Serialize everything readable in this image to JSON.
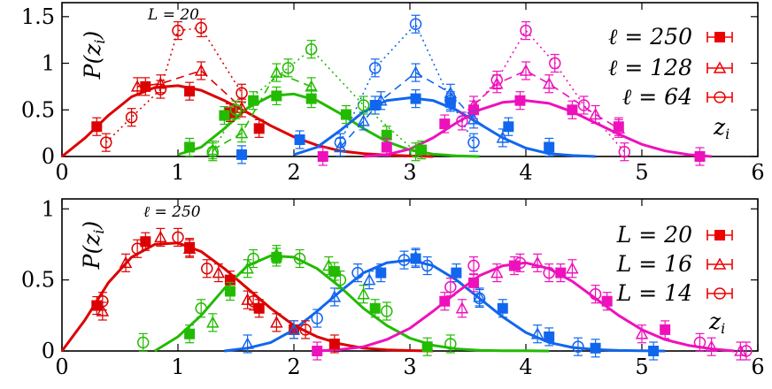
{
  "chart_data": [
    {
      "type": "line",
      "panel": "top",
      "annotation": "L = 20",
      "ylabel": "P(z_i)",
      "xlabel": "z_i",
      "xlim": [
        0,
        6
      ],
      "ylim": [
        0,
        1.65
      ],
      "xticks": [
        0,
        1,
        2,
        3,
        4,
        5,
        6
      ],
      "yticks": [
        0,
        0.5,
        1,
        1.5
      ],
      "ytick_labels": [
        "0",
        "0.5",
        "1",
        "1.5"
      ],
      "legend_position": "top-right",
      "legend": [
        {
          "label": "ℓ = 250",
          "marker": "square",
          "line": "solid"
        },
        {
          "label": "ℓ = 128",
          "marker": "triangle",
          "line": "dashed"
        },
        {
          "label": "ℓ = 64",
          "marker": "circle",
          "line": "dotted"
        }
      ],
      "colors": [
        "#dd0000",
        "#22bb00",
        "#1166ee",
        "#ee11bb"
      ],
      "curves": [
        {
          "x": [
            0.0,
            0.2,
            0.4,
            0.6,
            0.8,
            1.0,
            1.2,
            1.4,
            1.6,
            1.8,
            2.0,
            2.2,
            2.4,
            2.6,
            2.8,
            3.0,
            3.2
          ],
          "y": [
            0.0,
            0.2,
            0.44,
            0.64,
            0.74,
            0.76,
            0.71,
            0.6,
            0.47,
            0.33,
            0.21,
            0.12,
            0.06,
            0.03,
            0.015,
            0.006,
            0.0
          ]
        },
        {
          "x": [
            1.0,
            1.2,
            1.4,
            1.6,
            1.8,
            2.0,
            2.2,
            2.4,
            2.6,
            2.8,
            3.0,
            3.2,
            3.4,
            3.6
          ],
          "y": [
            0.02,
            0.1,
            0.3,
            0.52,
            0.65,
            0.67,
            0.6,
            0.46,
            0.3,
            0.16,
            0.07,
            0.025,
            0.008,
            0.0
          ]
        },
        {
          "x": [
            2.0,
            2.2,
            2.4,
            2.6,
            2.8,
            3.0,
            3.2,
            3.4,
            3.6,
            3.8,
            4.0,
            4.2,
            4.4,
            4.6
          ],
          "y": [
            0.02,
            0.1,
            0.28,
            0.48,
            0.6,
            0.63,
            0.6,
            0.5,
            0.35,
            0.2,
            0.09,
            0.03,
            0.01,
            0.0
          ]
        },
        {
          "x": [
            2.6,
            2.8,
            3.0,
            3.2,
            3.4,
            3.6,
            3.8,
            4.0,
            4.2,
            4.4,
            4.6,
            4.8,
            5.0,
            5.2,
            5.4,
            5.6
          ],
          "y": [
            0.0,
            0.02,
            0.08,
            0.2,
            0.36,
            0.5,
            0.58,
            0.6,
            0.57,
            0.48,
            0.36,
            0.24,
            0.13,
            0.06,
            0.02,
            0.0
          ]
        }
      ],
      "series": [
        {
          "name": "ℓ = 250 (z1)",
          "color": "#dd0000",
          "marker": "square",
          "line": "solid",
          "x": [
            0.3,
            0.72,
            1.1,
            1.45,
            1.7
          ],
          "y": [
            0.32,
            0.75,
            0.7,
            0.47,
            0.3
          ]
        },
        {
          "name": "ℓ = 250 (z2)",
          "color": "#22bb00",
          "marker": "square",
          "line": "solid",
          "x": [
            1.1,
            1.4,
            1.65,
            1.85,
            2.15,
            2.45,
            2.8,
            3.1
          ],
          "y": [
            0.1,
            0.44,
            0.6,
            0.65,
            0.62,
            0.45,
            0.23,
            0.07
          ]
        },
        {
          "name": "ℓ = 250 (z3)",
          "color": "#1166ee",
          "marker": "square",
          "line": "solid",
          "x": [
            1.55,
            2.05,
            2.7,
            3.05,
            3.35,
            3.85,
            4.2
          ],
          "y": [
            0.02,
            0.18,
            0.55,
            0.62,
            0.58,
            0.32,
            0.1
          ]
        },
        {
          "name": "ℓ = 250 (z4)",
          "color": "#ee11bb",
          "marker": "square",
          "line": "solid",
          "x": [
            2.25,
            2.8,
            3.3,
            3.55,
            3.95,
            4.4,
            4.8,
            5.5
          ],
          "y": [
            0.0,
            0.1,
            0.35,
            0.5,
            0.6,
            0.5,
            0.32,
            0.0
          ]
        },
        {
          "name": "ℓ = 128 (z1)",
          "color": "#dd0000",
          "marker": "triangle",
          "line": "dashed",
          "x": [
            0.65,
            0.85,
            1.2,
            1.55
          ],
          "y": [
            0.75,
            0.78,
            0.92,
            0.52
          ]
        },
        {
          "name": "ℓ = 128 (z2)",
          "color": "#22bb00",
          "marker": "triangle",
          "line": "dashed",
          "x": [
            1.3,
            1.55,
            1.85,
            2.15
          ],
          "y": [
            0.07,
            0.25,
            0.9,
            0.75
          ]
        },
        {
          "name": "ℓ = 128 (z3)",
          "color": "#1166ee",
          "marker": "triangle",
          "line": "dashed",
          "x": [
            2.4,
            2.6,
            2.75,
            3.05,
            3.35,
            3.55,
            3.8
          ],
          "y": [
            0.1,
            0.38,
            0.6,
            0.9,
            0.68,
            0.4,
            0.2
          ]
        },
        {
          "name": "ℓ = 128 (z4)",
          "color": "#ee11bb",
          "marker": "triangle",
          "line": "dashed",
          "x": [
            3.55,
            3.75,
            4.0,
            4.2,
            4.6,
            4.8
          ],
          "y": [
            0.55,
            0.78,
            0.92,
            0.78,
            0.45,
            0.3
          ]
        },
        {
          "name": "ℓ = 64 (z1)",
          "color": "#dd0000",
          "marker": "circle",
          "line": "dotted",
          "x": [
            0.38,
            0.6,
            0.85,
            1.0,
            1.2,
            1.55
          ],
          "y": [
            0.15,
            0.42,
            0.72,
            1.35,
            1.38,
            0.68
          ]
        },
        {
          "name": "ℓ = 64 (z2)",
          "color": "#22bb00",
          "marker": "circle",
          "line": "dotted",
          "x": [
            1.3,
            1.5,
            1.95,
            2.15,
            2.6,
            3.05
          ],
          "y": [
            0.05,
            0.5,
            0.95,
            1.15,
            0.55,
            0.05
          ]
        },
        {
          "name": "ℓ = 64 (z3)",
          "color": "#1166ee",
          "marker": "circle",
          "line": "dotted",
          "x": [
            2.4,
            2.7,
            3.05,
            3.35,
            3.55
          ],
          "y": [
            0.15,
            0.95,
            1.42,
            0.6,
            0.15
          ]
        },
        {
          "name": "ℓ = 64 (z4)",
          "color": "#ee11bb",
          "marker": "circle",
          "line": "dotted",
          "x": [
            3.45,
            3.75,
            4.0,
            4.25,
            4.5,
            4.85
          ],
          "y": [
            0.38,
            0.82,
            1.35,
            1.0,
            0.55,
            0.05
          ]
        }
      ]
    },
    {
      "type": "line",
      "panel": "bottom",
      "annotation": "ℓ = 250",
      "ylabel": "P(z_i)",
      "xlabel": "z_i",
      "xlim": [
        0,
        6
      ],
      "ylim": [
        0,
        1.07
      ],
      "xticks": [
        0,
        1,
        2,
        3,
        4,
        5,
        6
      ],
      "yticks": [
        0,
        0.5,
        1
      ],
      "ytick_labels": [
        "0",
        "0.5",
        "1"
      ],
      "legend_position": "top-right",
      "legend": [
        {
          "label": "L = 20",
          "marker": "square"
        },
        {
          "label": "L = 16",
          "marker": "triangle"
        },
        {
          "label": "L = 14",
          "marker": "circle"
        }
      ],
      "colors": [
        "#dd0000",
        "#22bb00",
        "#1166ee",
        "#ee11bb"
      ],
      "curves": [
        {
          "x": [
            0.0,
            0.2,
            0.4,
            0.6,
            0.8,
            1.0,
            1.2,
            1.4,
            1.6,
            1.8,
            2.0,
            2.2,
            2.4,
            2.6,
            2.8,
            3.0,
            3.2
          ],
          "y": [
            0.0,
            0.22,
            0.48,
            0.66,
            0.75,
            0.76,
            0.7,
            0.58,
            0.44,
            0.3,
            0.18,
            0.1,
            0.05,
            0.02,
            0.008,
            0.003,
            0.0
          ]
        },
        {
          "x": [
            0.8,
            1.0,
            1.2,
            1.4,
            1.6,
            1.8,
            2.0,
            2.2,
            2.4,
            2.6,
            2.8,
            3.0,
            3.2,
            3.4,
            3.6,
            3.8,
            4.0,
            4.2
          ],
          "y": [
            0.0,
            0.1,
            0.25,
            0.44,
            0.6,
            0.67,
            0.66,
            0.58,
            0.45,
            0.3,
            0.18,
            0.09,
            0.04,
            0.015,
            0.005,
            0.002,
            0.001,
            0.0
          ]
        },
        {
          "x": [
            1.4,
            1.6,
            1.8,
            2.0,
            2.2,
            2.4,
            2.6,
            2.8,
            3.0,
            3.2,
            3.4,
            3.6,
            3.8,
            4.0,
            4.2,
            4.4,
            4.6,
            4.8,
            5.0,
            5.2
          ],
          "y": [
            0.0,
            0.02,
            0.06,
            0.15,
            0.28,
            0.42,
            0.55,
            0.62,
            0.64,
            0.6,
            0.5,
            0.37,
            0.24,
            0.13,
            0.06,
            0.025,
            0.01,
            0.004,
            0.001,
            0.0
          ]
        },
        {
          "x": [
            2.2,
            2.4,
            2.6,
            2.8,
            3.0,
            3.2,
            3.4,
            3.6,
            3.8,
            4.0,
            4.2,
            4.4,
            4.6,
            4.8,
            5.0,
            5.2,
            5.4,
            5.6,
            5.8
          ],
          "y": [
            0.0,
            0.01,
            0.03,
            0.08,
            0.16,
            0.28,
            0.41,
            0.53,
            0.6,
            0.62,
            0.58,
            0.49,
            0.37,
            0.25,
            0.15,
            0.08,
            0.04,
            0.015,
            0.0
          ]
        }
      ],
      "series": [
        {
          "name": "L = 20 (z1)",
          "color": "#dd0000",
          "marker": "square",
          "x": [
            0.3,
            0.72,
            1.1,
            1.45,
            1.7,
            2.0,
            2.35
          ],
          "y": [
            0.32,
            0.77,
            0.73,
            0.5,
            0.3,
            0.15,
            0.05
          ]
        },
        {
          "name": "L = 20 (z2)",
          "color": "#22bb00",
          "marker": "square",
          "x": [
            1.1,
            1.45,
            1.85,
            2.35,
            2.7,
            3.15
          ],
          "y": [
            0.12,
            0.42,
            0.66,
            0.56,
            0.3,
            0.03
          ]
        },
        {
          "name": "L = 20 (z3)",
          "color": "#1166ee",
          "marker": "square",
          "x": [
            2.75,
            3.05,
            3.4,
            3.8,
            4.2,
            4.6,
            5.1
          ],
          "y": [
            0.55,
            0.65,
            0.55,
            0.3,
            0.1,
            0.02,
            0.0
          ]
        },
        {
          "name": "L = 20 (z4)",
          "color": "#ee11bb",
          "marker": "square",
          "x": [
            2.2,
            3.3,
            3.55,
            3.9,
            4.3,
            4.7,
            5.2
          ],
          "y": [
            0.0,
            0.35,
            0.48,
            0.6,
            0.55,
            0.35,
            0.15
          ]
        },
        {
          "name": "L = 16 (z1)",
          "color": "#dd0000",
          "marker": "triangle",
          "x": [
            0.35,
            0.55,
            0.85,
            1.1,
            1.35,
            1.6,
            1.85
          ],
          "y": [
            0.28,
            0.62,
            0.8,
            0.72,
            0.55,
            0.36,
            0.2
          ]
        },
        {
          "name": "L = 16 (z2)",
          "color": "#22bb00",
          "marker": "triangle",
          "x": [
            1.3,
            1.6,
            1.85,
            2.3,
            2.6
          ],
          "y": [
            0.2,
            0.58,
            0.68,
            0.6,
            0.4
          ]
        },
        {
          "name": "L = 16 (z3)",
          "color": "#1166ee",
          "marker": "triangle",
          "x": [
            1.6,
            2.0,
            2.35,
            2.65,
            3.05,
            3.6,
            4.1
          ],
          "y": [
            0.05,
            0.15,
            0.38,
            0.5,
            0.66,
            0.38,
            0.12
          ]
        },
        {
          "name": "L = 16 (z4)",
          "color": "#ee11bb",
          "marker": "triangle",
          "x": [
            3.45,
            3.75,
            4.1,
            4.4,
            5.0,
            5.6,
            5.85
          ],
          "y": [
            0.3,
            0.55,
            0.62,
            0.58,
            0.12,
            0.03,
            0.0
          ]
        },
        {
          "name": "L = 14 (z1)",
          "color": "#dd0000",
          "marker": "circle",
          "x": [
            0.35,
            0.65,
            1.0,
            1.25,
            1.65,
            2.1
          ],
          "y": [
            0.35,
            0.72,
            0.8,
            0.58,
            0.35,
            0.15
          ]
        },
        {
          "name": "L = 14 (z2)",
          "color": "#22bb00",
          "marker": "circle",
          "x": [
            0.7,
            1.2,
            1.65,
            2.05,
            2.4,
            2.8,
            3.35
          ],
          "y": [
            0.06,
            0.3,
            0.65,
            0.65,
            0.5,
            0.28,
            0.05
          ]
        },
        {
          "name": "L = 14 (z3)",
          "color": "#1166ee",
          "marker": "circle",
          "x": [
            2.2,
            2.55,
            2.95,
            3.15,
            3.6,
            4.45
          ],
          "y": [
            0.23,
            0.55,
            0.64,
            0.6,
            0.37,
            0.03
          ]
        },
        {
          "name": "L = 14 (z4)",
          "color": "#ee11bb",
          "marker": "circle",
          "x": [
            3.35,
            3.55,
            3.95,
            4.2,
            4.6,
            5.5,
            5.9
          ],
          "y": [
            0.45,
            0.6,
            0.62,
            0.55,
            0.4,
            0.06,
            0.0
          ]
        }
      ]
    }
  ]
}
